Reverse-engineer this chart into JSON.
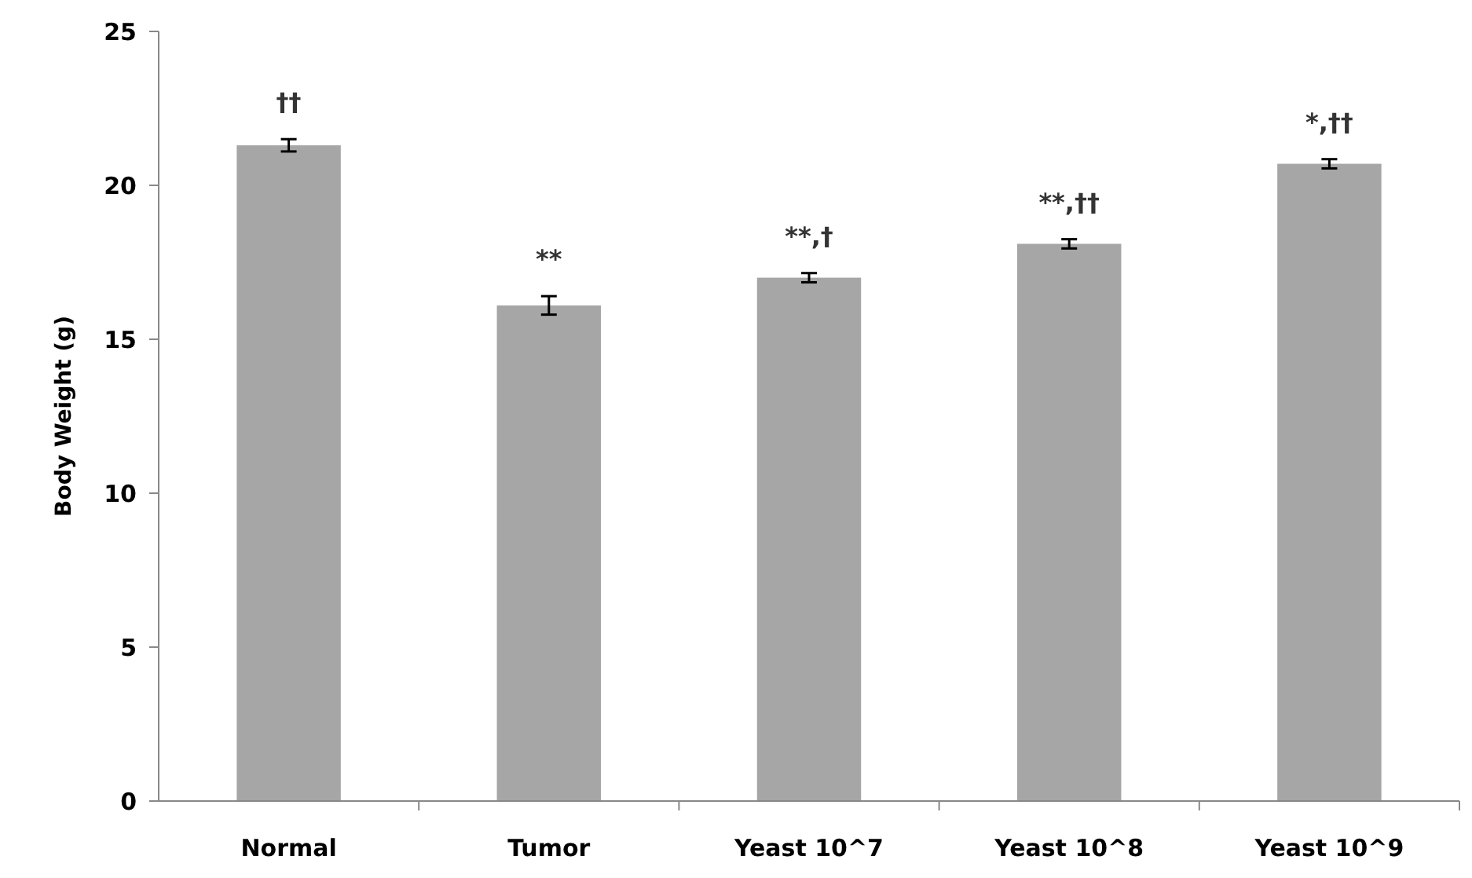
{
  "chart_data": {
    "type": "bar",
    "ylabel": "Body Weight (g)",
    "categories": [
      "Normal",
      "Tumor",
      "Yeast 10^7",
      "Yeast 10^8",
      "Yeast 10^9"
    ],
    "values": [
      21.3,
      16.1,
      17.0,
      18.1,
      20.7
    ],
    "errors": [
      0.2,
      0.3,
      0.15,
      0.15,
      0.15
    ],
    "color": "#a6a6a6",
    "ylim": [
      0,
      25
    ],
    "yticks": [
      0,
      5,
      10,
      15,
      20,
      25
    ],
    "grid": false,
    "annotations": [
      "††",
      "**",
      "**,†",
      "**,††",
      "*,††"
    ]
  }
}
